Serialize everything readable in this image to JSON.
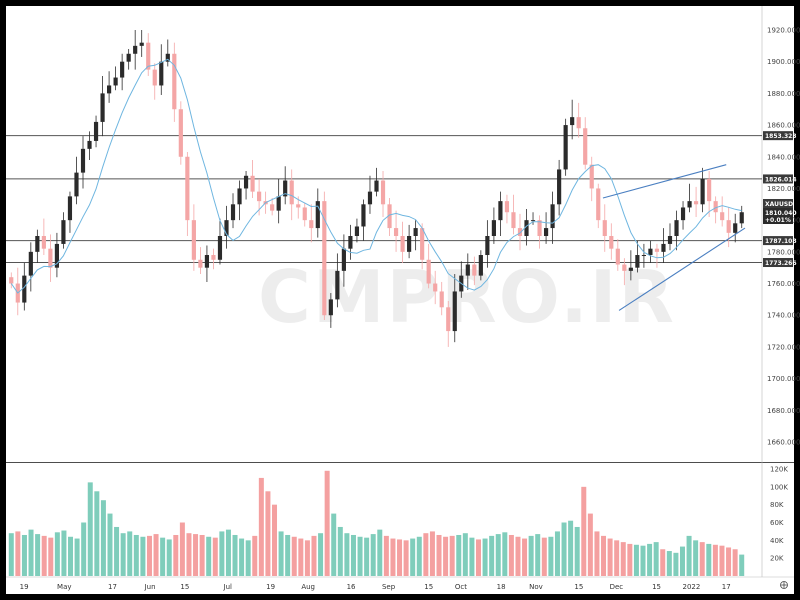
{
  "watermark": "CMPRO.IR",
  "colors": {
    "background": "#ffffff",
    "frame": "#000000",
    "up_candle": "#2b2b2b",
    "down_candle": "#f4a6a6",
    "ma_line": "#6fb6e0",
    "hline": "#555555",
    "trendline": "#4a7fc1",
    "volume_up": "#7fcdbb",
    "volume_down": "#f4a0a0",
    "badge": "#3a3a3a"
  },
  "chart_data": {
    "type": "candlestick",
    "symbol": "XAUUSD",
    "price_axis": {
      "range": [
        1650,
        1925
      ],
      "ticks": [
        "1920.000",
        "1900.000",
        "1880.000",
        "1860.000",
        "1840.000",
        "1820.000",
        "1800.000",
        "1780.000",
        "1760.000",
        "1740.000",
        "1720.000",
        "1700.000",
        "1680.000",
        "1660.000"
      ],
      "tick_values": [
        1920,
        1900,
        1880,
        1860,
        1840,
        1820,
        1800,
        1780,
        1760,
        1740,
        1720,
        1700,
        1680,
        1660
      ]
    },
    "volume_axis": {
      "range": [
        0,
        125000
      ],
      "ticks": [
        "120K",
        "100K",
        "80K",
        "60K",
        "40K",
        "20K"
      ],
      "tick_values": [
        120000,
        100000,
        80000,
        60000,
        40000,
        20000
      ]
    },
    "date_axis": {
      "labels": [
        "19",
        "May",
        "17",
        "Jun",
        "15",
        "Jul",
        "19",
        "Aug",
        "16",
        "Sep",
        "15",
        "Oct",
        "18",
        "Nov",
        "15",
        "Dec",
        "15",
        "2022",
        "17"
      ],
      "label_bar_index": [
        6,
        21,
        39,
        53,
        66,
        82,
        98,
        112,
        128,
        142,
        157,
        169,
        184,
        197,
        213,
        227,
        242,
        255,
        268
      ]
    },
    "horizontal_levels": [
      {
        "value": 1853.323,
        "label": "1853.323"
      },
      {
        "value": 1826.014,
        "label": "1826.014"
      },
      {
        "value": 1787.108,
        "label": "1787.108"
      },
      {
        "value": 1773.266,
        "label": "1773.266"
      }
    ],
    "last_price": {
      "price_label": "1810.040",
      "change_label": "+0.01%",
      "value": 1810.04
    },
    "trendlines": [
      {
        "from": {
          "bar": 222,
          "price": 1814
        },
        "to": {
          "bar": 268,
          "price": 1835
        }
      },
      {
        "from": {
          "bar": 228,
          "price": 1743
        },
        "to": {
          "bar": 275,
          "price": 1795
        }
      }
    ],
    "ohlc_close_path": [
      1760,
      1748,
      1765,
      1780,
      1790,
      1782,
      1770,
      1785,
      1800,
      1815,
      1830,
      1845,
      1850,
      1862,
      1880,
      1885,
      1890,
      1900,
      1905,
      1910,
      1912,
      1895,
      1885,
      1900,
      1905,
      1870,
      1840,
      1800,
      1775,
      1770,
      1778,
      1775,
      1790,
      1800,
      1810,
      1820,
      1828,
      1818,
      1812,
      1810,
      1806,
      1815,
      1825,
      1810,
      1808,
      1800,
      1795,
      1812,
      1740,
      1750,
      1768,
      1782,
      1790,
      1796,
      1810,
      1818,
      1825,
      1810,
      1795,
      1790,
      1780,
      1790,
      1795,
      1775,
      1760,
      1755,
      1745,
      1730,
      1755,
      1765,
      1772,
      1765,
      1778,
      1790,
      1800,
      1812,
      1805,
      1795,
      1790,
      1800,
      1800,
      1790,
      1795,
      1810,
      1832,
      1860,
      1865,
      1858,
      1835,
      1820,
      1800,
      1790,
      1782,
      1772,
      1768,
      1770,
      1778,
      1778,
      1782,
      1780,
      1785,
      1790,
      1800,
      1808,
      1812,
      1810,
      1826,
      1812,
      1805,
      1800,
      1792,
      1798,
      1805
    ],
    "volume_values": [
      48000,
      50000,
      46000,
      52000,
      47000,
      45000,
      43000,
      49000,
      51000,
      44000,
      42000,
      60000,
      105000,
      95000,
      85000,
      70000,
      55000,
      48000,
      50000,
      46000,
      44000,
      45000,
      47000,
      43000,
      41000,
      46000,
      60000,
      48000,
      47000,
      46000,
      44000,
      43000,
      50000,
      52000,
      46000,
      42000,
      40000,
      45000,
      110000,
      95000,
      80000,
      50000,
      46000,
      44000,
      42000,
      40000,
      45000,
      48000,
      118000,
      70000,
      55000,
      48000,
      46000,
      44000,
      43000,
      47000,
      52000,
      45000,
      42000,
      41000,
      40000,
      42000,
      44000,
      48000,
      50000,
      46000,
      44000,
      45000,
      46000,
      48000,
      43000,
      41000,
      42000,
      45000,
      47000,
      49000,
      46000,
      44000,
      42000,
      45000,
      47000,
      43000,
      44000,
      50000,
      60000,
      62000,
      55000,
      100000,
      70000,
      50000,
      45000,
      42000,
      40000,
      38000,
      36000,
      35000,
      34000,
      36000,
      38000,
      30000,
      28000,
      26000,
      33000,
      45000,
      40000,
      38000,
      36000,
      35000,
      34000,
      32000,
      30000,
      24000
    ]
  }
}
